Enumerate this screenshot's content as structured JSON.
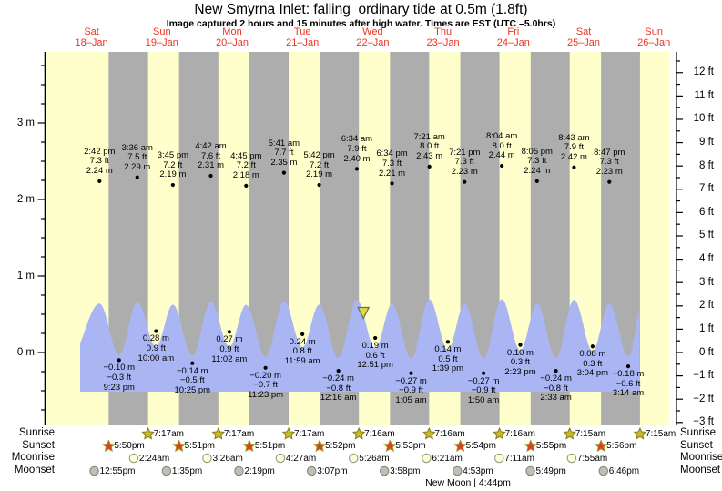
{
  "chart_data": {
    "type": "area",
    "title": "New Smyrna Inlet: falling  ordinary tide at 0.5m (1.8ft)",
    "subtitle": "Image captured 2 hours and 15 minutes after high water. Times are EST (UTC –5.0hrs)",
    "days": [
      {
        "dow": "Sat",
        "date": "18–Jan"
      },
      {
        "dow": "Sun",
        "date": "19–Jan"
      },
      {
        "dow": "Mon",
        "date": "20–Jan"
      },
      {
        "dow": "Tue",
        "date": "21–Jan"
      },
      {
        "dow": "Wed",
        "date": "22–Jan"
      },
      {
        "dow": "Thu",
        "date": "23–Jan"
      },
      {
        "dow": "Fri",
        "date": "24–Jan"
      },
      {
        "dow": "Sat",
        "date": "25–Jan"
      },
      {
        "dow": "Sun",
        "date": "26–Jan"
      }
    ],
    "y_axis_left": {
      "unit": "m",
      "major_values": [
        0,
        1,
        2,
        3
      ],
      "minor_step": 0.25,
      "minor_min": -0.75,
      "minor_max": 3.75
    },
    "y_axis_right": {
      "unit": "ft",
      "major_min": -3,
      "major_max": 13,
      "minor_step": 0.5
    },
    "tides": [
      {
        "day": 0,
        "time": "2:42 pm",
        "ft": 7.3,
        "m": 2.24,
        "kind": "high"
      },
      {
        "day": 0,
        "time": "9:23 pm",
        "ft": -0.3,
        "m": -0.1,
        "kind": "low"
      },
      {
        "day": 1,
        "time": "3:36 am",
        "ft": 7.5,
        "m": 2.29,
        "kind": "high"
      },
      {
        "day": 1,
        "time": "10:00 am",
        "ft": 0.9,
        "m": 0.28,
        "kind": "low"
      },
      {
        "day": 1,
        "time": "3:45 pm",
        "ft": 7.2,
        "m": 2.19,
        "kind": "high"
      },
      {
        "day": 1,
        "time": "10:25 pm",
        "ft": -0.5,
        "m": -0.14,
        "kind": "low"
      },
      {
        "day": 2,
        "time": "4:42 am",
        "ft": 7.6,
        "m": 2.31,
        "kind": "high"
      },
      {
        "day": 2,
        "time": "11:02 am",
        "ft": 0.9,
        "m": 0.27,
        "kind": "low"
      },
      {
        "day": 2,
        "time": "4:45 pm",
        "ft": 7.2,
        "m": 2.18,
        "kind": "high"
      },
      {
        "day": 2,
        "time": "11:23 pm",
        "ft": -0.7,
        "m": -0.2,
        "kind": "low"
      },
      {
        "day": 3,
        "time": "5:41 am",
        "ft": 7.7,
        "m": 2.35,
        "kind": "high"
      },
      {
        "day": 3,
        "time": "11:59 am",
        "ft": 0.8,
        "m": 0.24,
        "kind": "low"
      },
      {
        "day": 3,
        "time": "5:42 pm",
        "ft": 7.2,
        "m": 2.19,
        "kind": "high"
      },
      {
        "day": 4,
        "time": "12:16 am",
        "ft": -0.8,
        "m": -0.24,
        "kind": "low"
      },
      {
        "day": 4,
        "time": "6:34 am",
        "ft": 7.9,
        "m": 2.4,
        "kind": "high"
      },
      {
        "day": 4,
        "time": "12:51 pm",
        "ft": 0.6,
        "m": 0.19,
        "kind": "low"
      },
      {
        "day": 4,
        "time": "6:34 pm",
        "ft": 7.3,
        "m": 2.21,
        "kind": "high"
      },
      {
        "day": 5,
        "time": "1:05 am",
        "ft": -0.9,
        "m": -0.27,
        "kind": "low"
      },
      {
        "day": 5,
        "time": "7:21 am",
        "ft": 8.0,
        "m": 2.43,
        "kind": "high"
      },
      {
        "day": 5,
        "time": "1:39 pm",
        "ft": 0.5,
        "m": 0.14,
        "kind": "low"
      },
      {
        "day": 5,
        "time": "7:21 pm",
        "ft": 7.3,
        "m": 2.23,
        "kind": "high"
      },
      {
        "day": 6,
        "time": "1:50 am",
        "ft": -0.9,
        "m": -0.27,
        "kind": "low"
      },
      {
        "day": 6,
        "time": "8:04 am",
        "ft": 8.0,
        "m": 2.44,
        "kind": "high"
      },
      {
        "day": 6,
        "time": "2:23 pm",
        "ft": 0.3,
        "m": 0.1,
        "kind": "low"
      },
      {
        "day": 6,
        "time": "8:05 pm",
        "ft": 7.3,
        "m": 2.24,
        "kind": "high"
      },
      {
        "day": 7,
        "time": "2:33 am",
        "ft": -0.8,
        "m": -0.24,
        "kind": "low"
      },
      {
        "day": 7,
        "time": "8:43 am",
        "ft": 7.9,
        "m": 2.42,
        "kind": "high"
      },
      {
        "day": 7,
        "time": "3:04 pm",
        "ft": 0.3,
        "m": 0.08,
        "kind": "low"
      },
      {
        "day": 7,
        "time": "8:47 pm",
        "ft": 7.3,
        "m": 2.23,
        "kind": "high"
      },
      {
        "day": 8,
        "time": "3:14 am",
        "ft": -0.6,
        "m": -0.18,
        "kind": "low"
      }
    ],
    "sun_moon_rows": [
      {
        "key": "sunrise",
        "label": "Sunrise",
        "icon": "sunrise-star-icon",
        "events": [
          {
            "day": 1,
            "time": "7:17am"
          },
          {
            "day": 2,
            "time": "7:17am"
          },
          {
            "day": 3,
            "time": "7:17am"
          },
          {
            "day": 4,
            "time": "7:16am"
          },
          {
            "day": 5,
            "time": "7:16am"
          },
          {
            "day": 6,
            "time": "7:16am"
          },
          {
            "day": 7,
            "time": "7:15am"
          },
          {
            "day": 8,
            "time": "7:15am"
          }
        ]
      },
      {
        "key": "sunset",
        "label": "Sunset",
        "icon": "sunset-star-icon",
        "events": [
          {
            "day": 0,
            "time": "5:50pm"
          },
          {
            "day": 1,
            "time": "5:51pm"
          },
          {
            "day": 2,
            "time": "5:51pm"
          },
          {
            "day": 3,
            "time": "5:52pm"
          },
          {
            "day": 4,
            "time": "5:53pm"
          },
          {
            "day": 5,
            "time": "5:54pm"
          },
          {
            "day": 6,
            "time": "5:55pm"
          },
          {
            "day": 7,
            "time": "5:56pm"
          }
        ]
      },
      {
        "key": "moonrise",
        "label": "Moonrise",
        "icon": "moonrise-icon",
        "events": [
          {
            "day": 1,
            "time": "2:24am"
          },
          {
            "day": 2,
            "time": "3:26am"
          },
          {
            "day": 3,
            "time": "4:27am"
          },
          {
            "day": 4,
            "time": "5:26am"
          },
          {
            "day": 5,
            "time": "6:21am"
          },
          {
            "day": 6,
            "time": "7:11am"
          },
          {
            "day": 7,
            "time": "7:55am"
          }
        ]
      },
      {
        "key": "moonset",
        "label": "Moonset",
        "icon": "moonset-icon",
        "events": [
          {
            "day": 0,
            "time": "12:55pm"
          },
          {
            "day": 1,
            "time": "1:35pm"
          },
          {
            "day": 2,
            "time": "2:19pm"
          },
          {
            "day": 3,
            "time": "3:07pm"
          },
          {
            "day": 4,
            "time": "3:58pm"
          },
          {
            "day": 5,
            "time": "4:53pm"
          },
          {
            "day": 6,
            "time": "5:49pm"
          },
          {
            "day": 7,
            "time": "6:46pm"
          }
        ]
      }
    ],
    "new_moon_label": "New Moon | 4:44pm",
    "capture_marker": {
      "day": 4,
      "time": "8:49 am",
      "shape": "triangle-down"
    },
    "colors": {
      "day_band": "#ffffcc",
      "night_band": "#adadad",
      "tide_fill": "#a9b6f3",
      "day_label_red": "#ee3322",
      "sunrise_star_fill": "#c9b92c",
      "sunrise_star_stroke": "#877c18",
      "sunset_star_fill": "#e23b24",
      "sunset_star_stroke": "#a5901f",
      "moonrise_fill": "#ffffd8",
      "moonrise_stroke": "#9a9a88",
      "moonset_fill": "#bfbfb5",
      "moonset_stroke": "#87877d",
      "marker_fill": "#e0d945",
      "marker_stroke": "#6b6b50",
      "axis": "#000000"
    }
  }
}
